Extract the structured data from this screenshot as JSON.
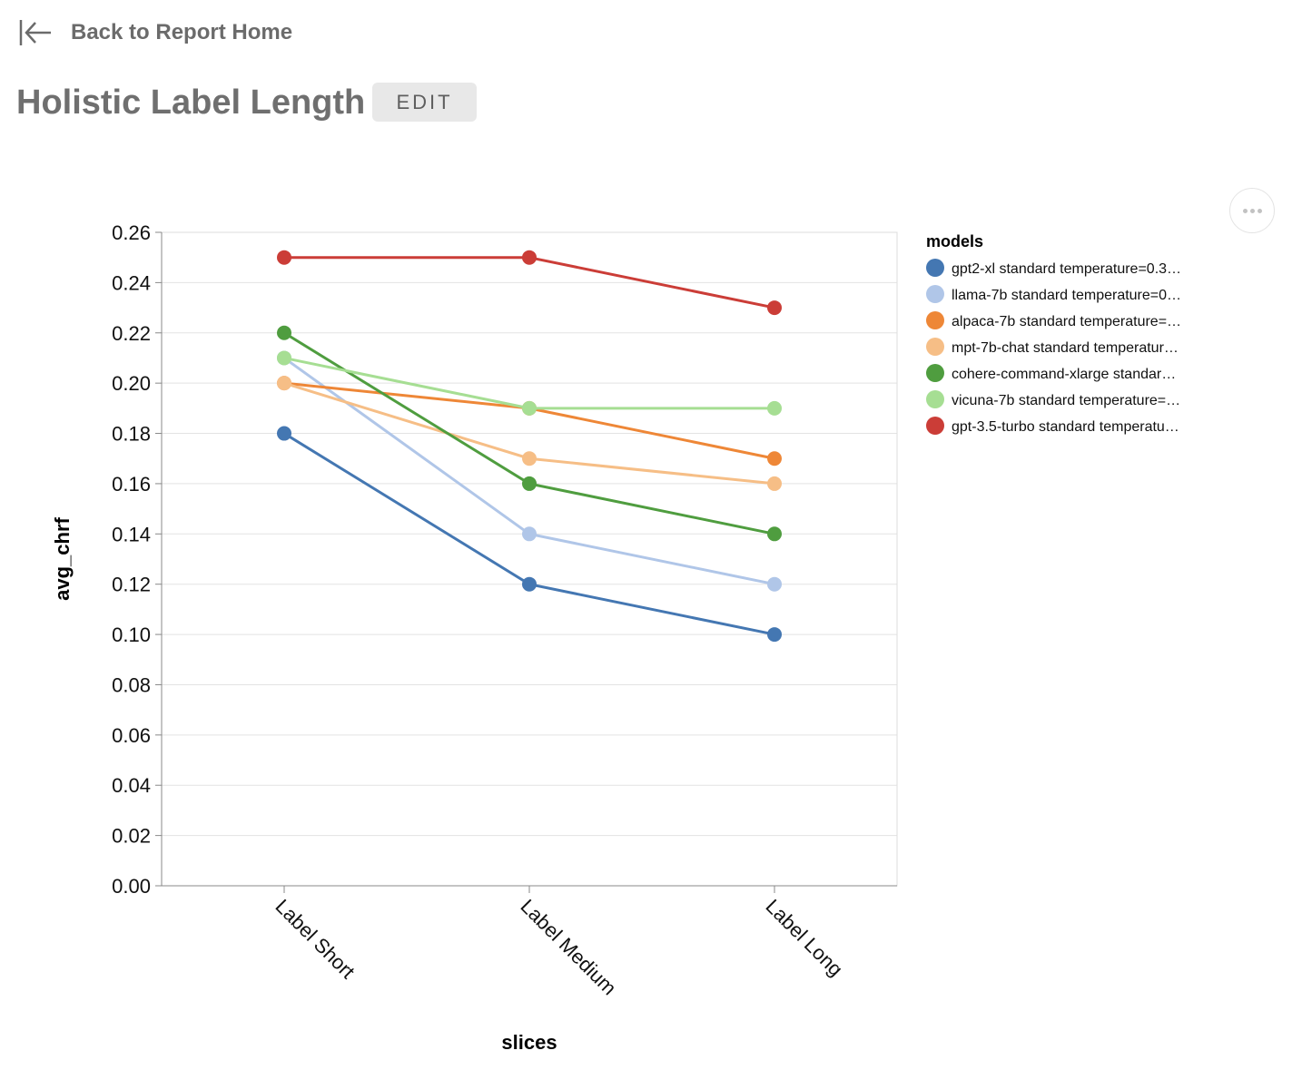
{
  "nav": {
    "back_label": "Back to Report Home"
  },
  "header": {
    "title": "Holistic Label Length",
    "edit_label": "EDIT"
  },
  "chart_data": {
    "type": "line",
    "title": "",
    "xlabel": "slices",
    "ylabel": "avg_chrf",
    "categories": [
      "Label Short",
      "Label Medium",
      "Label Long"
    ],
    "ylim": [
      0,
      0.26
    ],
    "yticks": [
      "0.00",
      "0.02",
      "0.04",
      "0.06",
      "0.08",
      "0.10",
      "0.12",
      "0.14",
      "0.16",
      "0.18",
      "0.20",
      "0.22",
      "0.24",
      "0.26"
    ],
    "grid": true,
    "legend_title": "models",
    "legend_position": "right",
    "series": [
      {
        "name": "gpt2-xl standard temperature=0.3…",
        "color": "#4477b2",
        "values": [
          0.18,
          0.12,
          0.1
        ]
      },
      {
        "name": "llama-7b standard temperature=0…",
        "color": "#b0c6e8",
        "values": [
          0.21,
          0.14,
          0.12
        ]
      },
      {
        "name": "alpaca-7b standard temperature=…",
        "color": "#ee8737",
        "values": [
          0.2,
          0.19,
          0.17
        ]
      },
      {
        "name": "mpt-7b-chat standard temperatur…",
        "color": "#f6be86",
        "values": [
          0.2,
          0.17,
          0.16
        ]
      },
      {
        "name": "cohere-command-xlarge standar…",
        "color": "#4f9d3f",
        "values": [
          0.22,
          0.16,
          0.14
        ]
      },
      {
        "name": "vicuna-7b standard temperature=…",
        "color": "#a6de93",
        "values": [
          0.21,
          0.19,
          0.19
        ]
      },
      {
        "name": "gpt-3.5-turbo standard temperatu…",
        "color": "#cb3d37",
        "values": [
          0.25,
          0.25,
          0.23
        ]
      }
    ]
  }
}
